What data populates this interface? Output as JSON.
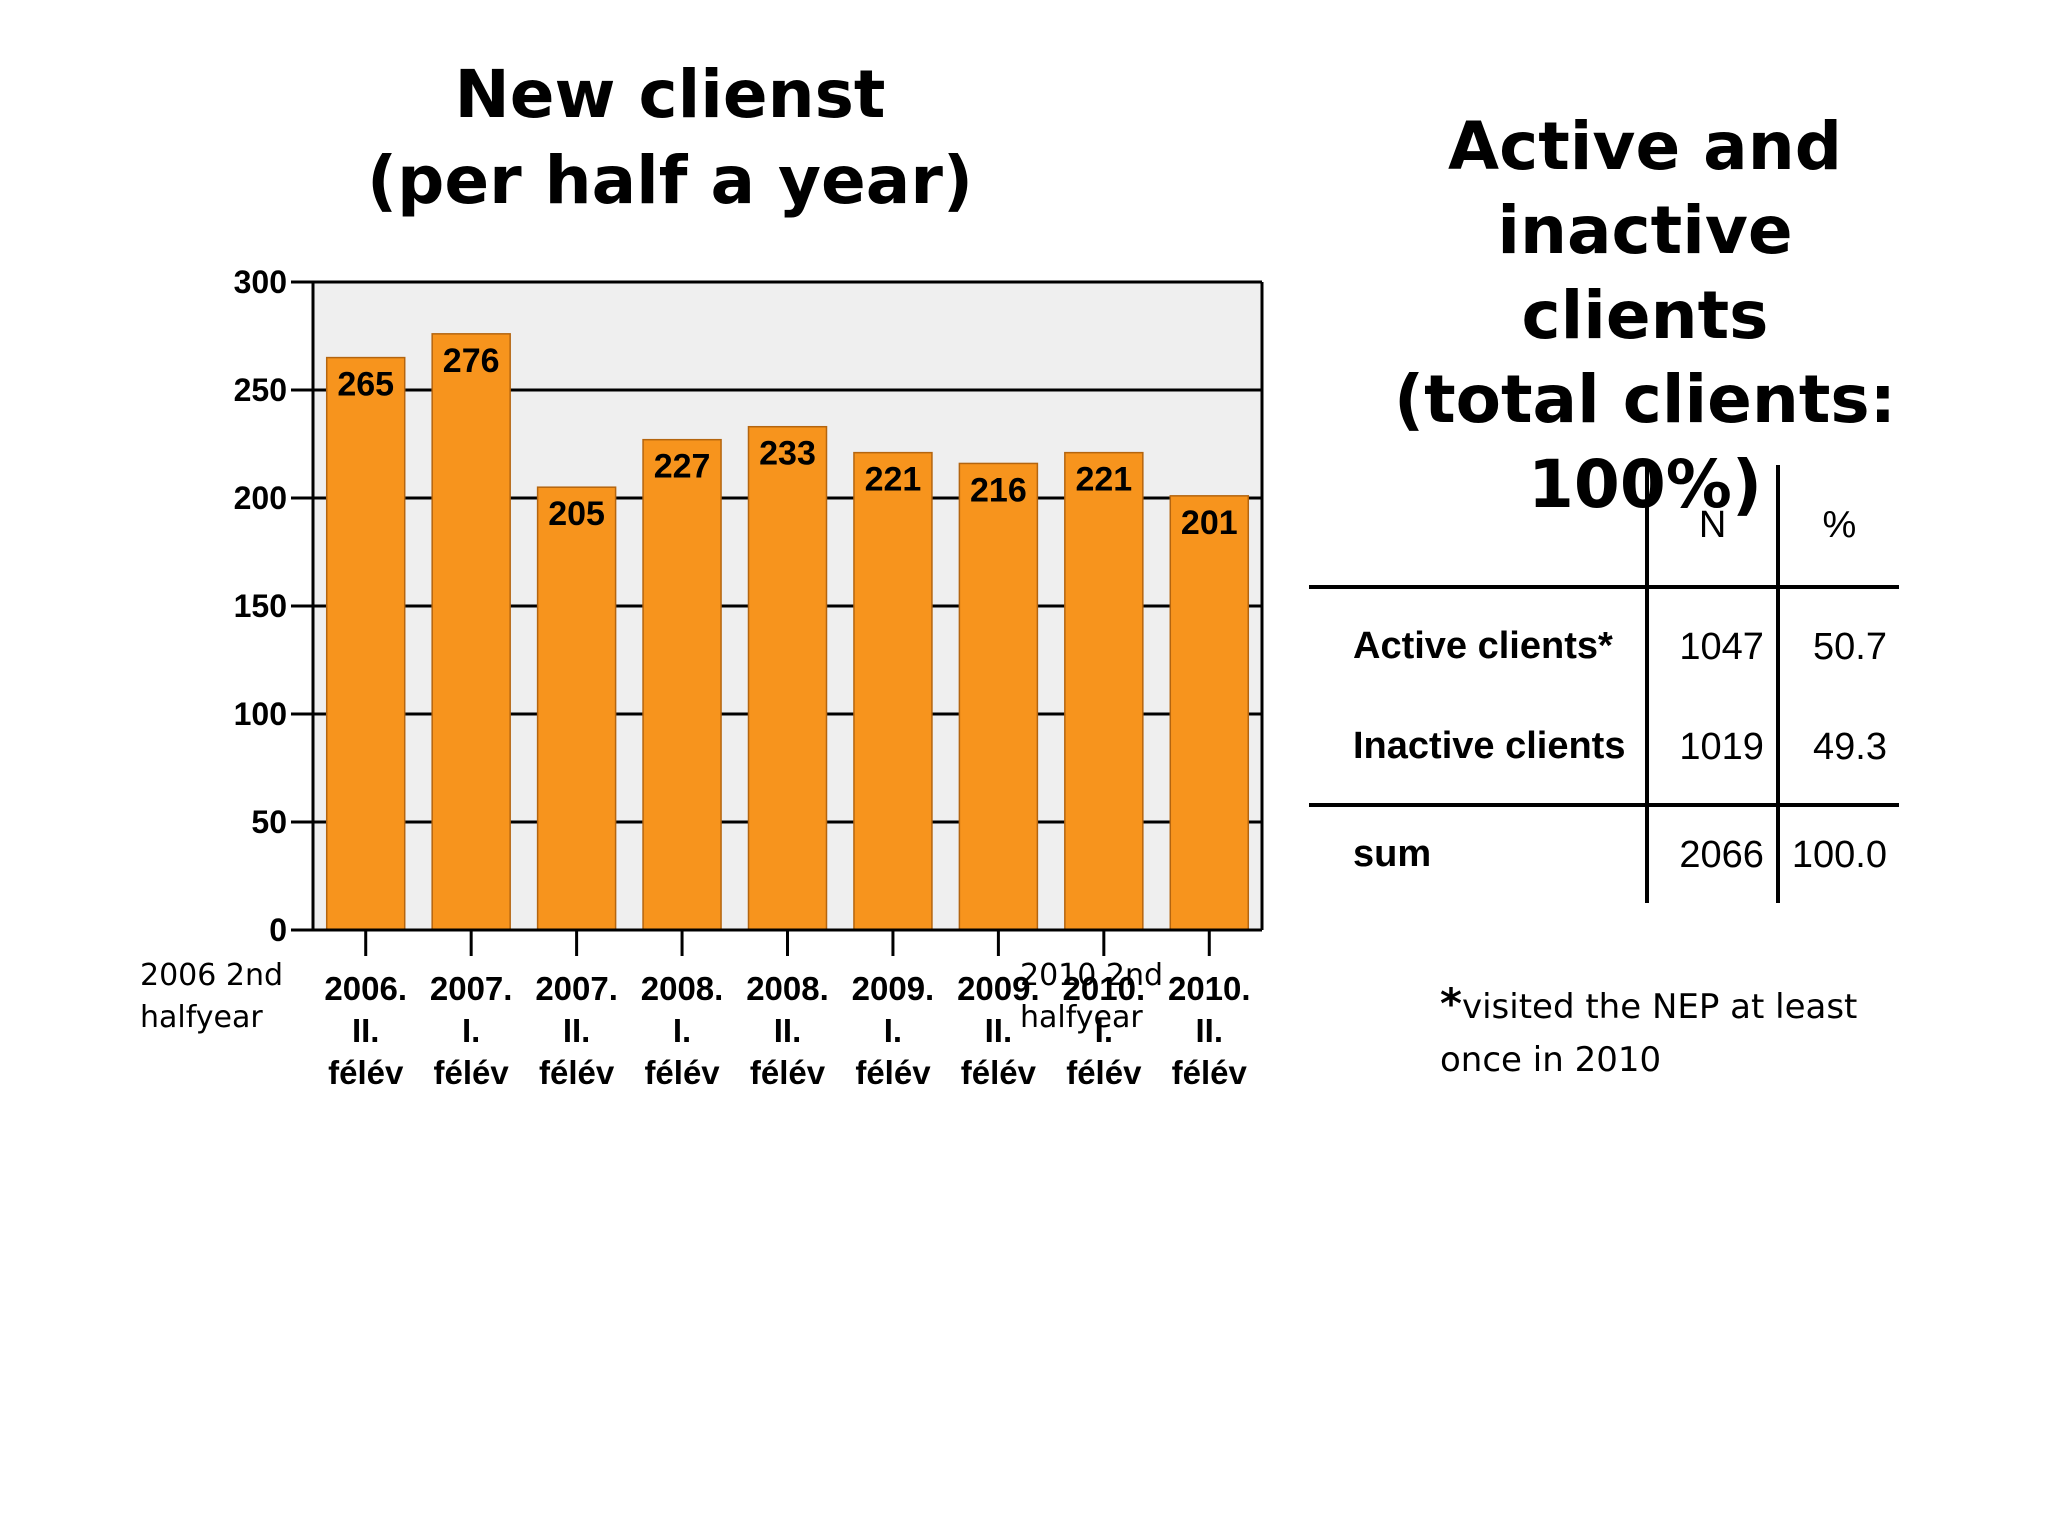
{
  "left_title": [
    "New clienst",
    "(per half a year)"
  ],
  "right_title": [
    "Active and inactive",
    "clients",
    "(total clients: 100%)"
  ],
  "chart_data": {
    "type": "bar",
    "categories": [
      [
        "2006.",
        "II.",
        "félév"
      ],
      [
        "2007.",
        "I.",
        "félév"
      ],
      [
        "2007.",
        "II.",
        "félév"
      ],
      [
        "2008.",
        "I.",
        "félév"
      ],
      [
        "2008.",
        "II.",
        "félév"
      ],
      [
        "2009.",
        "I.",
        "félév"
      ],
      [
        "2009.",
        "II.",
        "félév"
      ],
      [
        "2010.",
        "I.",
        "félév"
      ],
      [
        "2010.",
        "II.",
        "félév"
      ]
    ],
    "values": [
      265,
      276,
      205,
      227,
      233,
      221,
      216,
      221,
      201
    ],
    "ylim": [
      0,
      300
    ],
    "yticks": [
      0,
      50,
      100,
      150,
      200,
      250,
      300
    ],
    "grid": true,
    "bar_color": "#F7941D",
    "plot_background": "#EFEFEF",
    "data_labels": true
  },
  "overlay_notes": {
    "first": "2006 2nd halfyear",
    "last": "2010 2nd halfyear"
  },
  "table": {
    "headers": [
      "",
      "N",
      "%"
    ],
    "rows": [
      {
        "label": "Active clients*",
        "n": "1047",
        "pct": "50.7"
      },
      {
        "label": "Inactive clients",
        "n": "1019",
        "pct": "49.3"
      },
      {
        "label": "sum",
        "n": "2066",
        "pct": "100.0"
      }
    ]
  },
  "footnote": {
    "star": "*",
    "text": "visited the NEP at least once in 2010"
  }
}
